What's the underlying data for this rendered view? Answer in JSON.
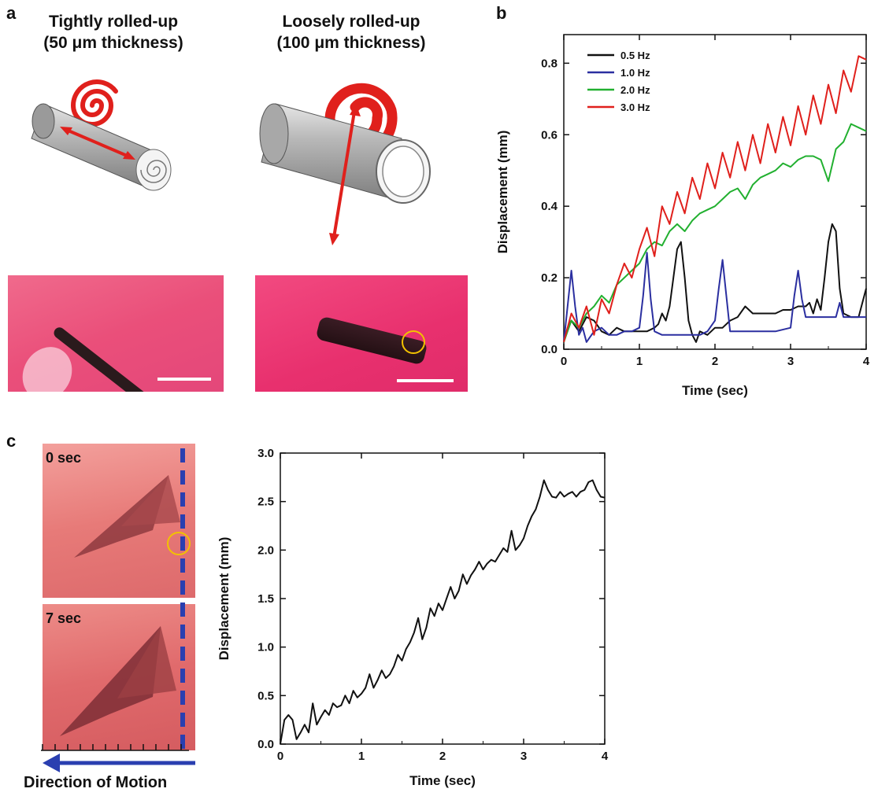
{
  "panels": {
    "a": {
      "letter": "a",
      "left_title": [
        "Tightly rolled-up",
        "(50 μm thickness)"
      ],
      "right_title": [
        "Loosely rolled-up",
        "(100 μm thickness)"
      ]
    },
    "b": {
      "letter": "b"
    },
    "c": {
      "letter": "c",
      "frame_labels": [
        "0 sec",
        "7 sec"
      ],
      "arrow_label": "Direction of Motion"
    }
  },
  "colors": {
    "red": "#e0201c",
    "blue": "#2b2fa0",
    "green": "#22b030",
    "black": "#111111",
    "photo_pink": "#e8356f",
    "photo_salmon": "#d9656c",
    "yellow": "#f2c200",
    "motion_blue": "#2a3fb0"
  },
  "chart_data": [
    {
      "id": "b",
      "type": "line",
      "xlabel": "Time (sec)",
      "ylabel": "Displacement (mm)",
      "xlim": [
        0,
        4
      ],
      "ylim": [
        0,
        0.88
      ],
      "xticks": [
        "0",
        "1",
        "2",
        "3",
        "4"
      ],
      "yticks": [
        "0.0",
        "0.2",
        "0.4",
        "0.6",
        "0.8"
      ],
      "legend_position": "top-left",
      "series": [
        {
          "name": "0.5 Hz",
          "color": "#111111",
          "x": [
            0,
            0.05,
            0.1,
            0.2,
            0.3,
            0.4,
            0.5,
            0.6,
            0.7,
            0.8,
            0.9,
            1.0,
            1.1,
            1.2,
            1.25,
            1.3,
            1.35,
            1.4,
            1.45,
            1.5,
            1.55,
            1.6,
            1.65,
            1.7,
            1.75,
            1.8,
            1.9,
            2.0,
            2.1,
            2.2,
            2.3,
            2.4,
            2.5,
            2.6,
            2.7,
            2.8,
            2.9,
            3.0,
            3.1,
            3.2,
            3.25,
            3.3,
            3.35,
            3.4,
            3.45,
            3.5,
            3.55,
            3.6,
            3.65,
            3.7,
            3.8,
            3.9,
            4.0
          ],
          "y": [
            0.02,
            0.06,
            0.08,
            0.05,
            0.09,
            0.08,
            0.05,
            0.04,
            0.06,
            0.05,
            0.05,
            0.05,
            0.05,
            0.06,
            0.07,
            0.1,
            0.08,
            0.12,
            0.2,
            0.28,
            0.3,
            0.2,
            0.08,
            0.04,
            0.02,
            0.05,
            0.04,
            0.06,
            0.06,
            0.08,
            0.09,
            0.12,
            0.1,
            0.1,
            0.1,
            0.1,
            0.11,
            0.11,
            0.12,
            0.12,
            0.13,
            0.1,
            0.14,
            0.11,
            0.2,
            0.3,
            0.35,
            0.33,
            0.17,
            0.1,
            0.09,
            0.09,
            0.17
          ]
        },
        {
          "name": "1.0 Hz",
          "color": "#2b2fa0",
          "x": [
            0,
            0.05,
            0.1,
            0.15,
            0.2,
            0.25,
            0.3,
            0.4,
            0.5,
            0.6,
            0.7,
            0.8,
            0.9,
            1.0,
            1.05,
            1.1,
            1.15,
            1.2,
            1.3,
            1.4,
            1.5,
            1.6,
            1.7,
            1.8,
            1.9,
            2.0,
            2.05,
            2.1,
            2.15,
            2.2,
            2.3,
            2.4,
            2.6,
            2.8,
            3.0,
            3.05,
            3.1,
            3.15,
            3.2,
            3.4,
            3.6,
            3.65,
            3.7,
            3.8,
            4.0
          ],
          "y": [
            0.02,
            0.12,
            0.22,
            0.12,
            0.04,
            0.06,
            0.02,
            0.05,
            0.06,
            0.04,
            0.04,
            0.05,
            0.05,
            0.06,
            0.15,
            0.27,
            0.14,
            0.05,
            0.04,
            0.04,
            0.04,
            0.04,
            0.04,
            0.04,
            0.05,
            0.08,
            0.17,
            0.25,
            0.15,
            0.05,
            0.05,
            0.05,
            0.05,
            0.05,
            0.06,
            0.15,
            0.22,
            0.14,
            0.09,
            0.09,
            0.09,
            0.13,
            0.09,
            0.09,
            0.09
          ]
        },
        {
          "name": "2.0 Hz",
          "color": "#22b030",
          "x": [
            0,
            0.1,
            0.2,
            0.3,
            0.4,
            0.5,
            0.6,
            0.7,
            0.8,
            0.9,
            1.0,
            1.1,
            1.2,
            1.3,
            1.4,
            1.5,
            1.6,
            1.7,
            1.8,
            1.9,
            2.0,
            2.1,
            2.2,
            2.3,
            2.4,
            2.5,
            2.6,
            2.7,
            2.8,
            2.9,
            3.0,
            3.1,
            3.2,
            3.3,
            3.4,
            3.5,
            3.6,
            3.7,
            3.8,
            3.9,
            4.0
          ],
          "y": [
            0.02,
            0.08,
            0.06,
            0.1,
            0.12,
            0.15,
            0.13,
            0.18,
            0.2,
            0.22,
            0.24,
            0.28,
            0.3,
            0.29,
            0.33,
            0.35,
            0.33,
            0.36,
            0.38,
            0.39,
            0.4,
            0.42,
            0.44,
            0.45,
            0.42,
            0.46,
            0.48,
            0.49,
            0.5,
            0.52,
            0.51,
            0.53,
            0.54,
            0.54,
            0.53,
            0.47,
            0.56,
            0.58,
            0.63,
            0.62,
            0.61
          ]
        },
        {
          "name": "3.0 Hz",
          "color": "#e0201c",
          "x": [
            0,
            0.1,
            0.2,
            0.3,
            0.4,
            0.5,
            0.6,
            0.7,
            0.8,
            0.9,
            1.0,
            1.1,
            1.2,
            1.3,
            1.4,
            1.5,
            1.6,
            1.7,
            1.8,
            1.9,
            2.0,
            2.1,
            2.2,
            2.3,
            2.4,
            2.5,
            2.6,
            2.7,
            2.8,
            2.9,
            3.0,
            3.1,
            3.2,
            3.3,
            3.4,
            3.5,
            3.6,
            3.7,
            3.8,
            3.9,
            4.0
          ],
          "y": [
            0.02,
            0.1,
            0.06,
            0.12,
            0.04,
            0.14,
            0.1,
            0.18,
            0.24,
            0.2,
            0.28,
            0.34,
            0.26,
            0.4,
            0.35,
            0.44,
            0.38,
            0.48,
            0.42,
            0.52,
            0.45,
            0.55,
            0.48,
            0.58,
            0.5,
            0.6,
            0.52,
            0.63,
            0.55,
            0.65,
            0.57,
            0.68,
            0.6,
            0.71,
            0.63,
            0.74,
            0.66,
            0.78,
            0.72,
            0.82,
            0.81
          ]
        }
      ]
    },
    {
      "id": "c",
      "type": "line",
      "xlabel": "Time (sec)",
      "ylabel": "Displacement (mm)",
      "xlim": [
        0,
        4
      ],
      "ylim": [
        0,
        3.0
      ],
      "xticks": [
        "0",
        "1",
        "2",
        "3",
        "4"
      ],
      "yticks": [
        "0.0",
        "0.5",
        "1.0",
        "1.5",
        "2.0",
        "2.5",
        "3.0"
      ],
      "series": [
        {
          "color": "#111111",
          "x": [
            0,
            0.05,
            0.1,
            0.15,
            0.2,
            0.25,
            0.3,
            0.35,
            0.4,
            0.45,
            0.5,
            0.55,
            0.6,
            0.65,
            0.7,
            0.75,
            0.8,
            0.85,
            0.9,
            0.95,
            1.0,
            1.05,
            1.1,
            1.15,
            1.2,
            1.25,
            1.3,
            1.35,
            1.4,
            1.45,
            1.5,
            1.55,
            1.6,
            1.65,
            1.7,
            1.75,
            1.8,
            1.85,
            1.9,
            1.95,
            2.0,
            2.05,
            2.1,
            2.15,
            2.2,
            2.25,
            2.3,
            2.35,
            2.4,
            2.45,
            2.5,
            2.55,
            2.6,
            2.65,
            2.7,
            2.75,
            2.8,
            2.85,
            2.9,
            2.95,
            3.0,
            3.05,
            3.1,
            3.15,
            3.2,
            3.25,
            3.3,
            3.35,
            3.4,
            3.45,
            3.5,
            3.55,
            3.6,
            3.65,
            3.7,
            3.75,
            3.8,
            3.85,
            3.9,
            3.95,
            4.0
          ],
          "y": [
            0.0,
            0.25,
            0.3,
            0.25,
            0.05,
            0.12,
            0.2,
            0.12,
            0.42,
            0.2,
            0.28,
            0.35,
            0.3,
            0.42,
            0.38,
            0.4,
            0.5,
            0.42,
            0.55,
            0.48,
            0.52,
            0.58,
            0.72,
            0.58,
            0.66,
            0.76,
            0.68,
            0.72,
            0.8,
            0.92,
            0.86,
            0.98,
            1.05,
            1.15,
            1.3,
            1.08,
            1.2,
            1.4,
            1.32,
            1.45,
            1.38,
            1.5,
            1.62,
            1.5,
            1.58,
            1.75,
            1.65,
            1.74,
            1.8,
            1.88,
            1.8,
            1.86,
            1.9,
            1.88,
            1.95,
            2.02,
            1.98,
            2.2,
            2.0,
            2.05,
            2.12,
            2.25,
            2.35,
            2.42,
            2.55,
            2.72,
            2.62,
            2.55,
            2.54,
            2.6,
            2.55,
            2.58,
            2.6,
            2.55,
            2.6,
            2.62,
            2.7,
            2.72,
            2.62,
            2.55,
            2.54
          ]
        }
      ]
    }
  ]
}
